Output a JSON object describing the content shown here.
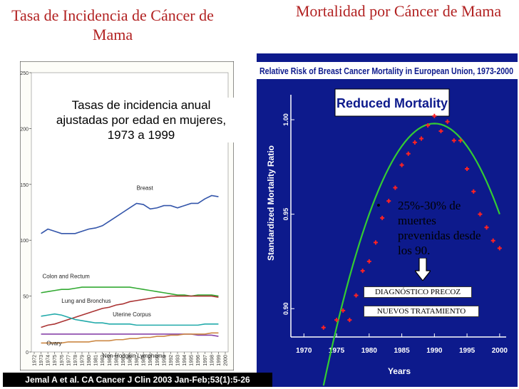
{
  "titles": {
    "left": "Tasa de Incidencia de Cáncer de Mama",
    "right": "Mortalidad por Cáncer de Mama"
  },
  "incidence_overlay": "Tasas de incidencia anual ajustadas por edad en mujeres, 1973 a 1999",
  "citation": "Jemal A et al. CA Cancer J Clin 2003 Jan-Feb;53(1):5-26",
  "mortality_callout": {
    "bullet": "•",
    "text": "25%-30% de muertes prevenidas desde los 90.",
    "diagnosis": "DIAGNÓSTICO PRECOZ",
    "treatment": "NUEVOS TRATAMIENTO"
  },
  "chart_data": [
    {
      "type": "line",
      "title": "",
      "xlabel": "",
      "ylabel": "",
      "ylim": [
        0,
        250
      ],
      "y_ticks": [
        "0",
        "50",
        "100",
        "150",
        "200",
        "250"
      ],
      "x_ticks": [
        "1972",
        "1973",
        "1974",
        "1975",
        "1976",
        "1977",
        "1978",
        "1979",
        "1980",
        "1981",
        "1982",
        "1983",
        "1984",
        "1985",
        "1986",
        "1987",
        "1988",
        "1989",
        "1990",
        "1991",
        "1992",
        "1993",
        "1994",
        "1995",
        "1996",
        "1997",
        "1998",
        "1999",
        "2000"
      ],
      "x": [
        1973,
        1974,
        1975,
        1976,
        1977,
        1978,
        1979,
        1980,
        1981,
        1982,
        1983,
        1984,
        1985,
        1986,
        1987,
        1988,
        1989,
        1990,
        1991,
        1992,
        1993,
        1994,
        1995,
        1996,
        1997,
        1998,
        1999
      ],
      "series": [
        {
          "name": "Breast",
          "color": "#3355aa",
          "values": [
            106,
            110,
            108,
            106,
            106,
            106,
            108,
            110,
            111,
            113,
            117,
            121,
            125,
            129,
            133,
            132,
            128,
            129,
            131,
            131,
            129,
            131,
            133,
            133,
            137,
            140,
            139
          ]
        },
        {
          "name": "Colon and Rectum",
          "color": "#33aa33",
          "values": [
            53,
            54,
            55,
            56,
            56,
            57,
            58,
            58,
            58,
            58,
            58,
            58,
            58,
            58,
            57,
            56,
            55,
            54,
            53,
            52,
            51,
            51,
            50,
            51,
            51,
            51,
            50
          ]
        },
        {
          "name": "Lung and Bronchus",
          "color": "#aa3333",
          "values": [
            22,
            24,
            25,
            27,
            29,
            31,
            33,
            35,
            37,
            39,
            40,
            42,
            43,
            45,
            46,
            47,
            48,
            49,
            49,
            50,
            50,
            50,
            50,
            50,
            50,
            50,
            49
          ]
        },
        {
          "name": "Uterine Corpus",
          "color": "#22aaaa",
          "values": [
            32,
            33,
            34,
            33,
            31,
            29,
            28,
            27,
            26,
            26,
            25,
            25,
            25,
            25,
            24,
            24,
            24,
            24,
            24,
            24,
            24,
            24,
            24,
            24,
            25,
            25,
            25
          ]
        },
        {
          "name": "Ovary",
          "color": "#8844aa",
          "values": [
            16,
            16,
            16,
            16,
            16,
            16,
            16,
            16,
            16,
            16,
            16,
            16,
            16,
            16,
            16,
            16,
            16,
            16,
            16,
            16,
            16,
            16,
            16,
            15,
            15,
            15,
            14
          ]
        },
        {
          "name": "Non-Hodgkin Lymphoma",
          "color": "#cc8844",
          "values": [
            8,
            8,
            8,
            8,
            9,
            9,
            9,
            9,
            10,
            10,
            10,
            11,
            11,
            12,
            12,
            13,
            13,
            14,
            14,
            15,
            15,
            16,
            16,
            16,
            16,
            17,
            17
          ]
        }
      ]
    },
    {
      "type": "scatter",
      "title": "Relative Risk of Breast Cancer Mortality in European Union, 1973-2000",
      "banner": "Reduced Mortality",
      "xlabel": "Years",
      "ylabel": "Standardized Mortality Ratio",
      "xlim": [
        1968,
        2001
      ],
      "ylim": [
        0.885,
        1.02
      ],
      "x_ticks": [
        "1970",
        "1975",
        "1980",
        "1985",
        "1990",
        "1995",
        "2000"
      ],
      "y_ticks": [
        "0.90",
        "0.95",
        "1.00"
      ],
      "point_color": "#ff2222",
      "curve_color": "#33cc33",
      "background": "#0d1a8c",
      "points": [
        {
          "x": 1973,
          "y": 0.89
        },
        {
          "x": 1975,
          "y": 0.894
        },
        {
          "x": 1976,
          "y": 0.899
        },
        {
          "x": 1977,
          "y": 0.894
        },
        {
          "x": 1978,
          "y": 0.907
        },
        {
          "x": 1979,
          "y": 0.92
        },
        {
          "x": 1980,
          "y": 0.925
        },
        {
          "x": 1981,
          "y": 0.935
        },
        {
          "x": 1982,
          "y": 0.948
        },
        {
          "x": 1983,
          "y": 0.957
        },
        {
          "x": 1984,
          "y": 0.964
        },
        {
          "x": 1985,
          "y": 0.976
        },
        {
          "x": 1986,
          "y": 0.982
        },
        {
          "x": 1987,
          "y": 0.988
        },
        {
          "x": 1988,
          "y": 0.99
        },
        {
          "x": 1989,
          "y": 0.997
        },
        {
          "x": 1990,
          "y": 1.002
        },
        {
          "x": 1991,
          "y": 0.994
        },
        {
          "x": 1992,
          "y": 0.999
        },
        {
          "x": 1993,
          "y": 0.989
        },
        {
          "x": 1994,
          "y": 0.989
        },
        {
          "x": 1995,
          "y": 0.974
        },
        {
          "x": 1996,
          "y": 0.962
        },
        {
          "x": 1997,
          "y": 0.95
        },
        {
          "x": 1998,
          "y": 0.943
        },
        {
          "x": 1999,
          "y": 0.936
        },
        {
          "x": 2000,
          "y": 0.932
        }
      ]
    }
  ]
}
